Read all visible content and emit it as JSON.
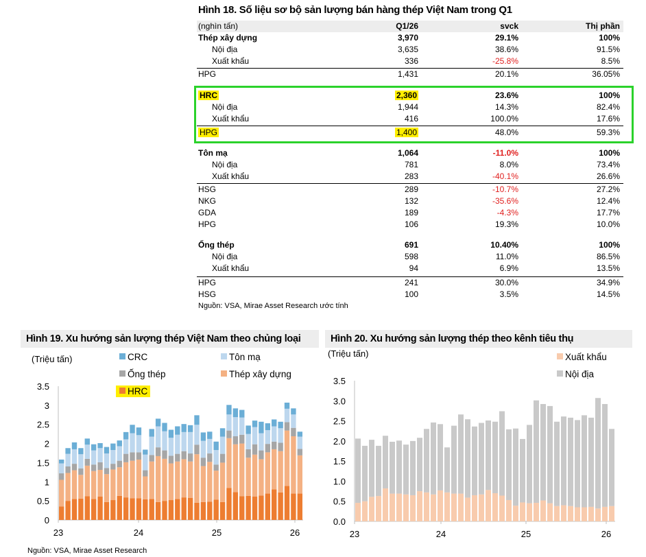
{
  "table": {
    "title": "Hình 18. Số liệu sơ bộ sản lượng bán hàng thép Việt Nam trong Q1",
    "header": [
      "(nghìn tấn)",
      "Q1/26",
      "svck",
      "Thị phần"
    ],
    "rows": [
      {
        "label": "Thép xây dựng",
        "q": "3,970",
        "yoy": "29.1%",
        "share": "100%",
        "bold": true
      },
      {
        "label": "Nội địa",
        "q": "3,635",
        "yoy": "38.6%",
        "share": "91.5%",
        "indent": true
      },
      {
        "label": "Xuất khẩu",
        "q": "336",
        "yoy": "-25.8%",
        "share": "8.5%",
        "indent": true,
        "neg": true
      },
      {
        "label": "HPG",
        "q": "1,431",
        "yoy": "20.1%",
        "share": "36.05%"
      },
      {
        "label": "HRC",
        "q": "2,360",
        "yoy": "23.6%",
        "share": "100%",
        "bold": true,
        "hl": true
      },
      {
        "label": "Nội địa",
        "q": "1,944",
        "yoy": "14.3%",
        "share": "82.4%",
        "indent": true
      },
      {
        "label": "Xuất khẩu",
        "q": "416",
        "yoy": "100.0%",
        "share": "17.6%",
        "indent": true
      },
      {
        "label": "HPG",
        "q": "1,400",
        "yoy": "48.0%",
        "share": "59.3%",
        "hl": true
      },
      {
        "label": "Tôn mạ",
        "q": "1,064",
        "yoy": "-11.0%",
        "share": "100%",
        "bold": true,
        "neg": true
      },
      {
        "label": "Nội địa",
        "q": "781",
        "yoy": "8.0%",
        "share": "73.4%",
        "indent": true
      },
      {
        "label": "Xuất khẩu",
        "q": "283",
        "yoy": "-40.1%",
        "share": "26.6%",
        "indent": true,
        "neg": true
      },
      {
        "label": "HSG",
        "q": "289",
        "yoy": "-10.7%",
        "share": "27.2%",
        "neg": true
      },
      {
        "label": "NKG",
        "q": "132",
        "yoy": "-35.6%",
        "share": "12.4%",
        "neg": true
      },
      {
        "label": "GDA",
        "q": "189",
        "yoy": "-4.3%",
        "share": "17.7%",
        "neg": true
      },
      {
        "label": "HPG",
        "q": "106",
        "yoy": "19.3%",
        "share": "10.0%"
      },
      {
        "label": "Ống thép",
        "q": "691",
        "yoy": "10.40%",
        "share": "100%",
        "bold": true
      },
      {
        "label": "Nội địa",
        "q": "598",
        "yoy": "11.0%",
        "share": "86.5%",
        "indent": true
      },
      {
        "label": "Xuất khẩu",
        "q": "94",
        "yoy": "6.9%",
        "share": "13.5%",
        "indent": true
      },
      {
        "label": "HPG",
        "q": "241",
        "yoy": "30.0%",
        "share": "34.9%"
      },
      {
        "label": "HSG",
        "q": "100",
        "yoy": "3.5%",
        "share": "14.5%"
      }
    ],
    "source": "Nguồn: VSA, Mirae Asset Research ước tính"
  },
  "colors": {
    "hrc": "#ed7d31",
    "txd": "#f4b183",
    "ong": "#a6a6a6",
    "tonma": "#bdd7ee",
    "crc": "#6baed6",
    "xk": "#f8cbad",
    "nd": "#c9c9c9",
    "green": "#2bd22b",
    "highlight": "#ffee00",
    "neg": "#e0201f"
  },
  "chart_data": [
    {
      "type": "bar",
      "stacked": true,
      "title": "Hình 19. Xu hướng sản lượng thép Việt Nam theo chủng loại",
      "ylabel": "(Triệu tấn)",
      "ylim": [
        0,
        3.5
      ],
      "yticks": [
        "0",
        "0.5",
        "1",
        "1.5",
        "2",
        "2.5",
        "3",
        "3.5"
      ],
      "xticks": [
        "23",
        "24",
        "25",
        "26"
      ],
      "series": [
        {
          "name": "HRC",
          "values": [
            0.35,
            0.5,
            0.55,
            0.56,
            0.62,
            0.55,
            0.61,
            0.47,
            0.52,
            0.63,
            0.59,
            0.57,
            0.57,
            0.54,
            0.55,
            0.47,
            0.5,
            0.52,
            0.55,
            0.59,
            0.58,
            0.45,
            0.47,
            0.48,
            0.53,
            0.47,
            0.84,
            0.73,
            0.62,
            0.63,
            0.61,
            0.64,
            0.69,
            0.8,
            0.72,
            0.89,
            0.69,
            0.69
          ]
        },
        {
          "name": "Thép xây dựng",
          "values": [
            0.7,
            0.73,
            0.75,
            0.62,
            0.8,
            0.73,
            0.7,
            0.73,
            0.8,
            0.75,
            0.92,
            0.98,
            1.01,
            0.6,
            0.98,
            1.2,
            1.1,
            0.96,
            0.98,
            1.0,
            0.95,
            1.27,
            0.94,
            1.04,
            0.76,
            1.03,
            1.3,
            1.25,
            1.38,
            1.0,
            1.1,
            0.95,
            1.08,
            1.05,
            1.08,
            1.45,
            1.5,
            1.0
          ]
        },
        {
          "name": "Ống thép",
          "values": [
            0.17,
            0.17,
            0.17,
            0.17,
            0.18,
            0.17,
            0.2,
            0.16,
            0.15,
            0.17,
            0.22,
            0.22,
            0.19,
            0.16,
            0.17,
            0.23,
            0.22,
            0.2,
            0.2,
            0.21,
            0.21,
            0.25,
            0.22,
            0.22,
            0.16,
            0.23,
            0.2,
            0.21,
            0.23,
            0.22,
            0.27,
            0.23,
            0.22,
            0.2,
            0.22,
            0.22,
            0.22,
            0.17
          ]
        },
        {
          "name": "Tôn mạ",
          "values": [
            0.26,
            0.33,
            0.38,
            0.37,
            0.37,
            0.37,
            0.37,
            0.38,
            0.36,
            0.38,
            0.38,
            0.5,
            0.45,
            0.41,
            0.48,
            0.55,
            0.5,
            0.47,
            0.5,
            0.5,
            0.56,
            0.52,
            0.44,
            0.38,
            0.38,
            0.45,
            0.42,
            0.5,
            0.45,
            0.4,
            0.45,
            0.45,
            0.36,
            0.4,
            0.38,
            0.35,
            0.35,
            0.32
          ]
        },
        {
          "name": "CRC",
          "values": [
            0.1,
            0.15,
            0.18,
            0.16,
            0.16,
            0.16,
            0.13,
            0.17,
            0.17,
            0.15,
            0.19,
            0.22,
            0.2,
            0.13,
            0.2,
            0.2,
            0.22,
            0.21,
            0.22,
            0.21,
            0.18,
            0.25,
            0.22,
            0.19,
            0.22,
            0.22,
            0.25,
            0.23,
            0.2,
            0.22,
            0.17,
            0.3,
            0.18,
            0.18,
            0.17,
            0.16,
            0.16,
            0.13
          ]
        }
      ],
      "legend": [
        "CRC",
        "Tôn mạ",
        "Ống thép",
        "Thép xây dựng",
        "HRC"
      ]
    },
    {
      "type": "bar",
      "stacked": true,
      "title": "Hình 20. Xu hướng sản lượng thép theo kênh tiêu thụ",
      "ylabel": "(Triệu tấn)",
      "ylim": [
        0,
        3.5
      ],
      "yticks": [
        "0.0",
        "0.5",
        "1.0",
        "1.5",
        "2.0",
        "2.5",
        "3.0",
        "3.5"
      ],
      "xticks": [
        "23",
        "24",
        "25",
        "26"
      ],
      "series": [
        {
          "name": "Xuất khẩu",
          "values": [
            0.46,
            0.5,
            0.61,
            0.63,
            0.82,
            0.69,
            0.69,
            0.67,
            0.65,
            0.75,
            0.72,
            0.67,
            0.77,
            0.72,
            0.69,
            0.69,
            0.59,
            0.65,
            0.67,
            0.78,
            0.7,
            0.64,
            0.53,
            0.39,
            0.47,
            0.45,
            0.46,
            0.52,
            0.45,
            0.38,
            0.4,
            0.38,
            0.35,
            0.35,
            0.36,
            0.32,
            0.36,
            0.38
          ]
        },
        {
          "name": "Nội địa",
          "values": [
            1.6,
            1.38,
            1.42,
            1.25,
            1.31,
            1.29,
            1.32,
            1.24,
            1.35,
            1.33,
            1.58,
            1.79,
            1.65,
            1.12,
            1.69,
            1.97,
            1.95,
            1.71,
            1.78,
            1.73,
            1.78,
            2.1,
            1.76,
            1.92,
            1.58,
            1.95,
            2.55,
            2.4,
            2.42,
            2.1,
            2.21,
            2.2,
            2.17,
            2.29,
            2.22,
            2.75,
            2.56,
            1.92
          ]
        }
      ],
      "legend": [
        "Xuất khẩu",
        "Nội địa"
      ]
    }
  ],
  "source2": "Nguồn: VSA, Mirae Asset Research"
}
